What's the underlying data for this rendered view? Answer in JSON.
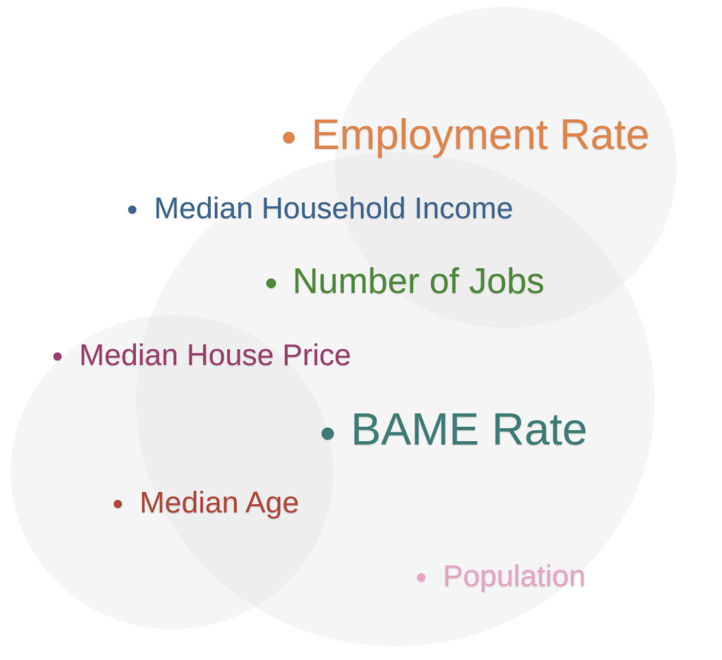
{
  "colors": {
    "employment_rate": "#E0844A",
    "median_household_income": "#3D6590",
    "number_of_jobs": "#4C8A3A",
    "median_house_price": "#9B3F6E",
    "bame_rate": "#3F7C79",
    "median_age": "#B0483A",
    "population": "#E7A3C6"
  },
  "bullet_glyph": "•",
  "items": {
    "employment_rate": "Employment Rate",
    "median_household_income": "Median Household Income",
    "number_of_jobs": "Number of Jobs",
    "median_house_price": "Median House Price",
    "bame_rate": "BAME Rate",
    "median_age": "Median Age",
    "population": "Population"
  }
}
